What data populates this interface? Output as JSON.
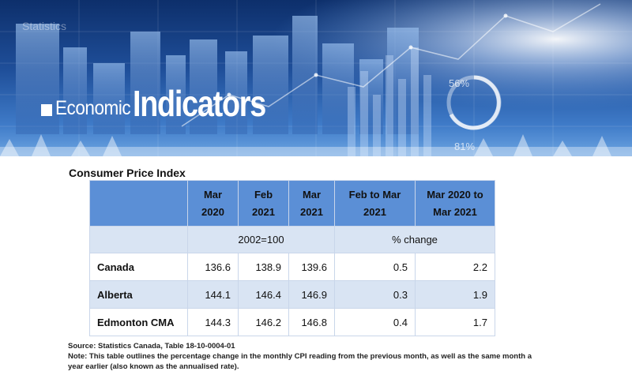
{
  "banner": {
    "word1": "Economic",
    "word2": "Indicators",
    "bg_text": "Statistics",
    "pct1": "56%",
    "pct2": "81%"
  },
  "table": {
    "title": "Consumer Price Index",
    "headers": [
      {
        "line1": "",
        "line2": ""
      },
      {
        "line1": "Mar",
        "line2": "2020"
      },
      {
        "line1": "Feb",
        "line2": "2021"
      },
      {
        "line1": "Mar",
        "line2": "2021"
      },
      {
        "line1": "Feb to Mar",
        "line2": "2021"
      },
      {
        "line1": "Mar 2020 to",
        "line2": "Mar 2021"
      }
    ],
    "units": {
      "index": "2002=100",
      "change": "% change"
    },
    "rows": [
      {
        "name": "Canada",
        "values": [
          "136.6",
          "138.9",
          "139.6",
          "0.5",
          "2.2"
        ]
      },
      {
        "name": "Alberta",
        "values": [
          "144.1",
          "146.4",
          "146.9",
          "0.3",
          "1.9"
        ]
      },
      {
        "name": "Edmonton CMA",
        "values": [
          "144.3",
          "146.2",
          "146.8",
          "0.4",
          "1.7"
        ]
      }
    ]
  },
  "footnotes": {
    "source": "Source: Statistics Canada, Table 18-10-0004-01",
    "note": "Note: This table outlines the percentage change in the monthly CPI reading from the previous month, as well as the same month a year earlier (also known as the annualised rate)."
  }
}
